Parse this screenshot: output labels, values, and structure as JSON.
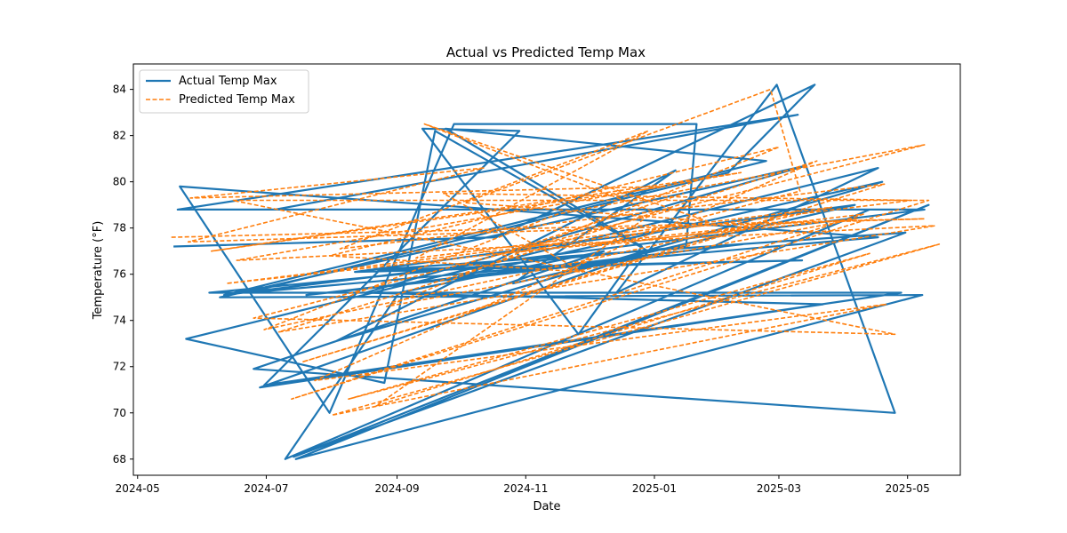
{
  "chart_data": {
    "type": "line",
    "title": "Actual vs Predicted Temp Max",
    "xlabel": "Date",
    "ylabel": "Temperature (°F)",
    "xlim": [
      "2024-04-29",
      "2025-05-26"
    ],
    "ylim": [
      67.3,
      85.1
    ],
    "xticks": [
      "2024-05",
      "2024-07",
      "2024-09",
      "2024-11",
      "2025-01",
      "2025-03",
      "2025-05"
    ],
    "yticks": [
      68,
      70,
      72,
      74,
      76,
      78,
      80,
      82,
      84
    ],
    "grid": false,
    "legend_position": "top-left",
    "series": [
      {
        "name": "Actual Temp Max",
        "color": "#1f77b4",
        "style": "solid",
        "points": [
          [
            "2024-05-18",
            77.2
          ],
          [
            "2024-10-18",
            77.6
          ],
          [
            "2025-03-18",
            84.2
          ],
          [
            "2025-02-05",
            80.4
          ],
          [
            "2024-06-22",
            75.2
          ],
          [
            "2025-04-17",
            77.6
          ],
          [
            "2024-05-21",
            79.8
          ],
          [
            "2024-07-31",
            70.0
          ],
          [
            "2024-09-28",
            82.5
          ],
          [
            "2025-01-21",
            82.5
          ],
          [
            "2025-01-16",
            77.2
          ],
          [
            "2024-06-04",
            75.2
          ],
          [
            "2025-04-28",
            75.2
          ],
          [
            "2024-06-30",
            71.2
          ],
          [
            "2024-10-29",
            82.2
          ],
          [
            "2024-09-13",
            82.3
          ],
          [
            "2024-11-26",
            73.4
          ],
          [
            "2024-12-26",
            77.2
          ],
          [
            "2024-09-24",
            82.3
          ],
          [
            "2025-02-23",
            80.9
          ],
          [
            "2024-06-11",
            75.1
          ],
          [
            "2025-05-09",
            78.8
          ],
          [
            "2024-07-05",
            78.8
          ],
          [
            "2025-03-10",
            82.9
          ],
          [
            "2024-05-20",
            78.8
          ],
          [
            "2025-04-13",
            78.8
          ],
          [
            "2024-07-10",
            68.0
          ],
          [
            "2024-09-02",
            75.2
          ],
          [
            "2024-12-08",
            77.0
          ],
          [
            "2024-06-25",
            71.9
          ],
          [
            "2025-04-25",
            70.0
          ],
          [
            "2025-02-28",
            84.2
          ],
          [
            "2024-12-14",
            75.2
          ],
          [
            "2025-04-17",
            80.6
          ],
          [
            "2024-05-24",
            73.2
          ],
          [
            "2024-08-26",
            71.3
          ],
          [
            "2024-09-19",
            82.2
          ],
          [
            "2024-12-29",
            77.0
          ],
          [
            "2024-06-28",
            71.1
          ],
          [
            "2025-03-22",
            74.7
          ],
          [
            "2024-08-17",
            75.2
          ],
          [
            "2025-03-14",
            80.7
          ],
          [
            "2024-06-09",
            75.0
          ],
          [
            "2025-05-08",
            75.1
          ],
          [
            "2024-07-15",
            68.0
          ],
          [
            "2025-05-11",
            79.0
          ],
          [
            "2024-07-14",
            68.1
          ],
          [
            "2025-04-30",
            77.8
          ],
          [
            "2024-08-23",
            76.2
          ],
          [
            "2025-03-12",
            76.6
          ],
          [
            "2024-08-12",
            76.1
          ],
          [
            "2025-04-06",
            79.0
          ],
          [
            "2024-10-26",
            75.6
          ],
          [
            "2025-01-11",
            80.5
          ],
          [
            "2024-08-03",
            73.1
          ],
          [
            "2025-04-19",
            80.0
          ],
          [
            "2024-09-30",
            75.9
          ],
          [
            "2024-12-20",
            76.6
          ],
          [
            "2024-07-20",
            75.1
          ],
          [
            "2025-02-12",
            77.3
          ]
        ]
      },
      {
        "name": "Predicted Temp Max",
        "color": "#ff7f0e",
        "style": "dashed",
        "points": [
          [
            "2024-05-17",
            77.6
          ],
          [
            "2025-05-09",
            78.4
          ],
          [
            "2024-05-25",
            77.4
          ],
          [
            "2024-10-12",
            80.6
          ],
          [
            "2024-05-26",
            79.3
          ],
          [
            "2025-01-06",
            79.8
          ],
          [
            "2024-06-05",
            77.0
          ],
          [
            "2025-02-11",
            80.4
          ],
          [
            "2024-06-17",
            76.6
          ],
          [
            "2025-05-14",
            78.1
          ],
          [
            "2024-07-07",
            73.5
          ],
          [
            "2025-03-19",
            80.9
          ],
          [
            "2024-07-24",
            71.4
          ],
          [
            "2025-04-21",
            74.7
          ],
          [
            "2024-08-01",
            69.9
          ],
          [
            "2025-05-16",
            77.3
          ],
          [
            "2024-08-09",
            70.6
          ],
          [
            "2025-04-13",
            76.9
          ],
          [
            "2024-08-22",
            70.3
          ],
          [
            "2025-01-01",
            78.7
          ],
          [
            "2024-09-14",
            82.5
          ],
          [
            "2025-01-26",
            78.3
          ],
          [
            "2024-10-03",
            79.1
          ],
          [
            "2025-02-25",
            84.0
          ],
          [
            "2025-03-11",
            79.6
          ],
          [
            "2024-12-02",
            77.2
          ],
          [
            "2025-04-10",
            78.6
          ],
          [
            "2024-07-13",
            70.6
          ],
          [
            "2025-05-11",
            79.2
          ],
          [
            "2024-06-15",
            79.2
          ],
          [
            "2025-04-25",
            73.4
          ],
          [
            "2024-06-25",
            74.1
          ],
          [
            "2025-05-09",
            81.6
          ],
          [
            "2024-11-16",
            78.6
          ],
          [
            "2024-06-30",
            73.6
          ],
          [
            "2025-03-26",
            78.9
          ],
          [
            "2024-09-10",
            76.7
          ],
          [
            "2024-12-29",
            82.2
          ],
          [
            "2024-08-05",
            77.1
          ],
          [
            "2025-04-20",
            79.9
          ],
          [
            "2024-07-18",
            72.2
          ],
          [
            "2025-02-18",
            78.1
          ],
          [
            "2024-06-12",
            75.6
          ],
          [
            "2025-05-03",
            79.2
          ],
          [
            "2024-09-23",
            79.5
          ],
          [
            "2024-11-28",
            76.1
          ],
          [
            "2024-07-31",
            76.8
          ],
          [
            "2025-03-01",
            81.5
          ],
          [
            "2024-08-27",
            74.6
          ],
          [
            "2025-04-07",
            78.4
          ],
          [
            "2024-10-21",
            76.9
          ],
          [
            "2025-01-15",
            79.5
          ]
        ]
      }
    ]
  }
}
